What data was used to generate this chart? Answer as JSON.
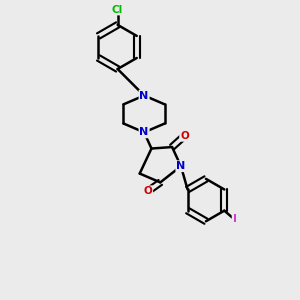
{
  "background_color": "#ebebeb",
  "atom_colors": {
    "C": "#000000",
    "N": "#0000cc",
    "O": "#cc0000",
    "Cl": "#00bb00",
    "I": "#cc44cc"
  },
  "bond_color": "#000000",
  "bond_width": 1.8,
  "figsize": [
    3.0,
    3.0
  ],
  "dpi": 100
}
